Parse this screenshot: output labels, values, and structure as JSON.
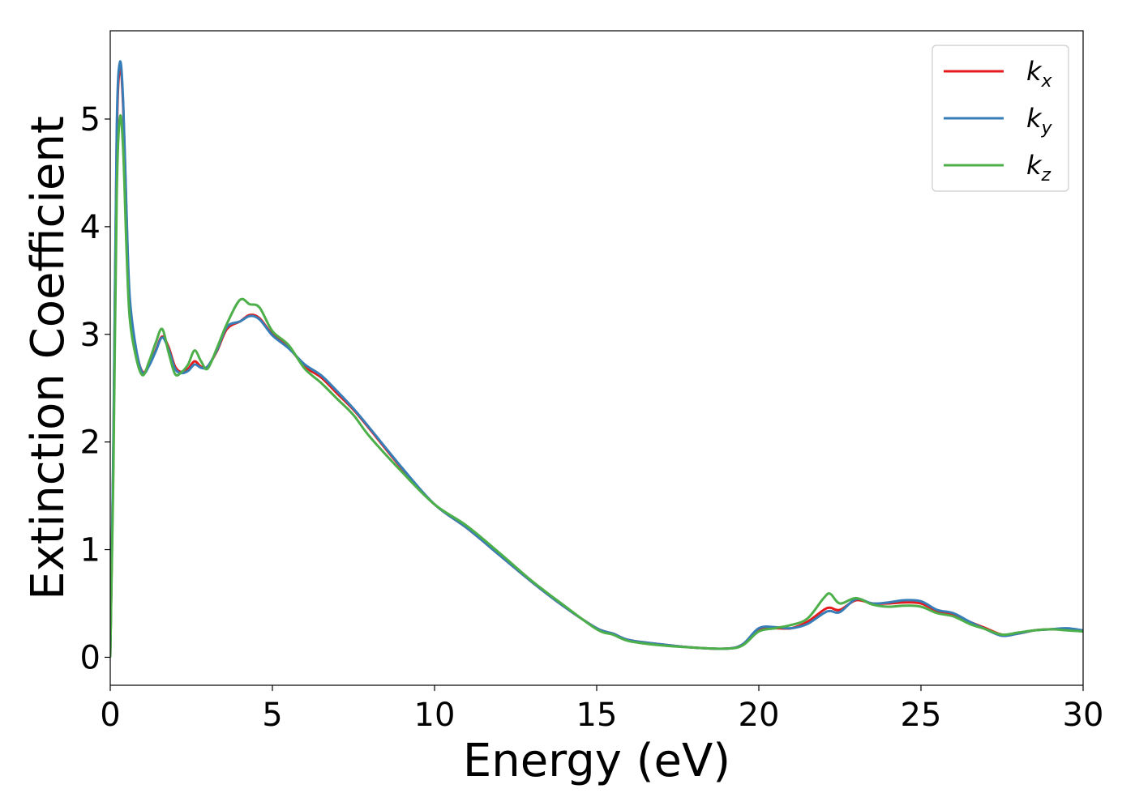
{
  "chart_data": {
    "type": "line",
    "xlabel": "Energy (eV)",
    "ylabel": "Extinction Coefficient",
    "xlim": [
      0,
      30
    ],
    "ylim": [
      -0.26,
      5.82
    ],
    "xticks": [
      0,
      5,
      10,
      15,
      20,
      25,
      30
    ],
    "yticks": [
      0,
      1,
      2,
      3,
      4,
      5
    ],
    "grid": false,
    "legend_position": "top-right",
    "series": [
      {
        "name": "k",
        "subscript": "x",
        "color": "#e41a1c",
        "x": [
          0,
          0.1,
          0.2,
          0.3,
          0.4,
          0.5,
          0.6,
          0.8,
          1.0,
          1.2,
          1.4,
          1.6,
          1.8,
          2.0,
          2.2,
          2.4,
          2.6,
          2.8,
          3.0,
          3.3,
          3.6,
          4.0,
          4.3,
          4.6,
          5.0,
          5.5,
          6.0,
          6.5,
          7.0,
          7.5,
          8.0,
          9.0,
          10.0,
          11.0,
          12.0,
          13.0,
          14.0,
          15.0,
          15.5,
          16.0,
          17.0,
          18.0,
          19.0,
          19.5,
          20.0,
          20.5,
          21.0,
          21.5,
          22.0,
          22.2,
          22.5,
          23.0,
          23.5,
          24.0,
          24.5,
          25.0,
          25.5,
          26.0,
          26.5,
          27.0,
          27.5,
          28.0,
          28.5,
          29.0,
          29.5,
          30.0
        ],
        "values": [
          0.0,
          2.0,
          4.8,
          5.48,
          5.1,
          4.1,
          3.3,
          2.85,
          2.65,
          2.72,
          2.85,
          2.98,
          2.88,
          2.7,
          2.65,
          2.68,
          2.75,
          2.7,
          2.7,
          2.85,
          3.05,
          3.12,
          3.18,
          3.15,
          3.0,
          2.88,
          2.7,
          2.6,
          2.45,
          2.3,
          2.12,
          1.75,
          1.42,
          1.2,
          0.95,
          0.7,
          0.47,
          0.27,
          0.22,
          0.16,
          0.12,
          0.09,
          0.08,
          0.12,
          0.26,
          0.27,
          0.27,
          0.33,
          0.44,
          0.46,
          0.44,
          0.53,
          0.5,
          0.5,
          0.51,
          0.5,
          0.43,
          0.4,
          0.33,
          0.27,
          0.21,
          0.22,
          0.25,
          0.26,
          0.26,
          0.24
        ]
      },
      {
        "name": "k",
        "subscript": "y",
        "color": "#377eb8",
        "x": [
          0,
          0.1,
          0.2,
          0.3,
          0.4,
          0.5,
          0.6,
          0.8,
          1.0,
          1.2,
          1.4,
          1.6,
          1.8,
          2.0,
          2.2,
          2.4,
          2.6,
          2.8,
          3.0,
          3.3,
          3.6,
          4.0,
          4.3,
          4.6,
          5.0,
          5.5,
          6.0,
          6.5,
          7.0,
          7.5,
          8.0,
          9.0,
          10.0,
          11.0,
          12.0,
          13.0,
          14.0,
          15.0,
          15.5,
          16.0,
          17.0,
          18.0,
          19.0,
          19.5,
          20.0,
          20.5,
          21.0,
          21.5,
          22.0,
          22.2,
          22.5,
          23.0,
          23.5,
          24.0,
          24.5,
          25.0,
          25.5,
          26.0,
          26.5,
          27.0,
          27.5,
          28.0,
          28.5,
          29.0,
          29.5,
          30.0
        ],
        "values": [
          0.0,
          2.1,
          4.9,
          5.53,
          5.15,
          4.15,
          3.35,
          2.86,
          2.64,
          2.71,
          2.84,
          2.97,
          2.86,
          2.68,
          2.64,
          2.66,
          2.72,
          2.69,
          2.7,
          2.86,
          3.07,
          3.12,
          3.17,
          3.14,
          2.99,
          2.87,
          2.72,
          2.62,
          2.47,
          2.31,
          2.13,
          1.76,
          1.42,
          1.2,
          0.95,
          0.7,
          0.47,
          0.27,
          0.22,
          0.16,
          0.12,
          0.09,
          0.08,
          0.12,
          0.27,
          0.28,
          0.27,
          0.31,
          0.41,
          0.43,
          0.42,
          0.54,
          0.5,
          0.51,
          0.53,
          0.52,
          0.44,
          0.41,
          0.33,
          0.26,
          0.2,
          0.22,
          0.25,
          0.26,
          0.27,
          0.25
        ]
      },
      {
        "name": "k",
        "subscript": "z",
        "color": "#4daf4a",
        "x": [
          0,
          0.1,
          0.2,
          0.3,
          0.4,
          0.5,
          0.6,
          0.8,
          1.0,
          1.2,
          1.4,
          1.6,
          1.8,
          2.0,
          2.2,
          2.4,
          2.6,
          2.8,
          3.0,
          3.3,
          3.6,
          4.0,
          4.3,
          4.6,
          5.0,
          5.5,
          6.0,
          6.5,
          7.0,
          7.5,
          8.0,
          9.0,
          10.0,
          11.0,
          12.0,
          13.0,
          14.0,
          15.0,
          15.5,
          16.0,
          17.0,
          18.0,
          19.0,
          19.5,
          20.0,
          20.5,
          21.0,
          21.5,
          22.0,
          22.2,
          22.5,
          23.0,
          23.5,
          24.0,
          24.5,
          25.0,
          25.5,
          26.0,
          26.5,
          27.0,
          27.5,
          28.0,
          28.5,
          29.0,
          29.5,
          30.0
        ],
        "values": [
          0.0,
          1.8,
          4.3,
          5.02,
          4.7,
          3.8,
          3.15,
          2.78,
          2.62,
          2.75,
          2.92,
          3.05,
          2.83,
          2.63,
          2.65,
          2.72,
          2.85,
          2.75,
          2.68,
          2.88,
          3.1,
          3.32,
          3.28,
          3.25,
          3.03,
          2.9,
          2.68,
          2.55,
          2.4,
          2.25,
          2.05,
          1.72,
          1.42,
          1.22,
          0.97,
          0.71,
          0.48,
          0.26,
          0.21,
          0.15,
          0.11,
          0.09,
          0.08,
          0.11,
          0.24,
          0.27,
          0.3,
          0.36,
          0.55,
          0.59,
          0.5,
          0.55,
          0.49,
          0.47,
          0.48,
          0.47,
          0.41,
          0.38,
          0.31,
          0.26,
          0.21,
          0.23,
          0.25,
          0.26,
          0.25,
          0.24
        ]
      }
    ]
  }
}
